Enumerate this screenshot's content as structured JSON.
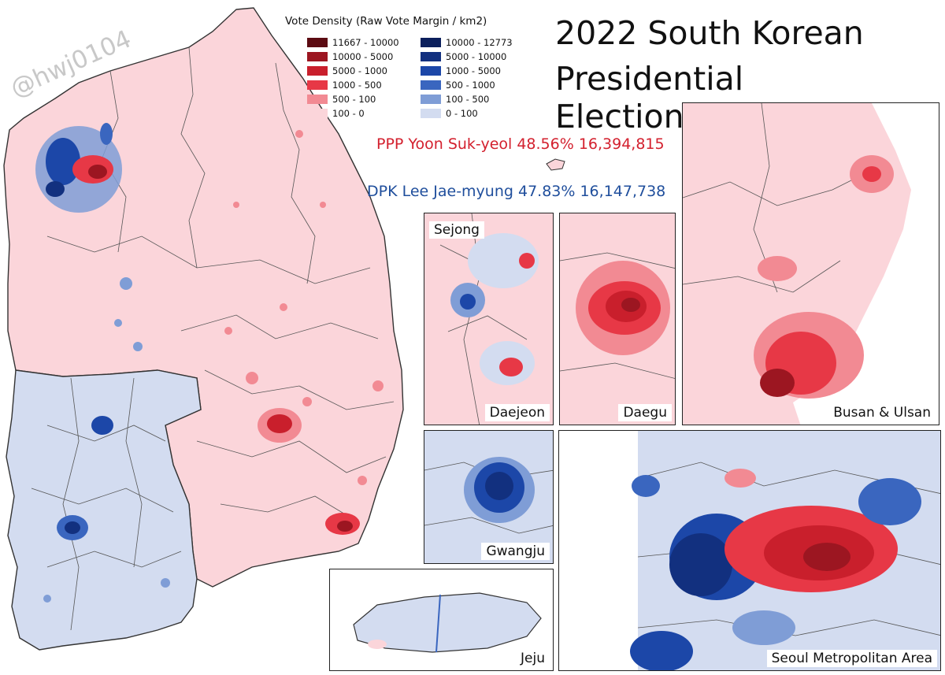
{
  "watermark": "@hwj0104",
  "title": {
    "line1": "2022 South Korean",
    "line2": "Presidential Election"
  },
  "legend": {
    "title": "Vote Density (Raw Vote Margin / km2)",
    "red_items": [
      {
        "label": "11667 - 10000",
        "color": "#5c0b12"
      },
      {
        "label": "10000 - 5000",
        "color": "#9c1621"
      },
      {
        "label": "5000 - 1000",
        "color": "#c91f2c"
      },
      {
        "label": "1000 - 500",
        "color": "#e73846"
      },
      {
        "label": "500 - 100",
        "color": "#f28a93"
      },
      {
        "label": "100 - 0",
        "color": "#fbd5da"
      }
    ],
    "blue_items": [
      {
        "label": "10000 - 12773",
        "color": "#0b1f5c"
      },
      {
        "label": "5000 - 10000",
        "color": "#12307f"
      },
      {
        "label": "1000 - 5000",
        "color": "#1c47a8"
      },
      {
        "label": "500 - 1000",
        "color": "#3a66bf"
      },
      {
        "label": "100 - 500",
        "color": "#7f9dd6"
      },
      {
        "label": "0 - 100",
        "color": "#d3dcf0"
      }
    ]
  },
  "candidates": {
    "ppp": {
      "text": "PPP Yoon Suk-yeol 48.56% 16,394,815",
      "color": "#d3202e"
    },
    "dpk": {
      "text": "DPK Lee Jae-myung 47.83% 16,147,738",
      "color": "#1f4e9c"
    }
  },
  "insets": {
    "sejong": "Sejong",
    "daejeon": "Daejeon",
    "daegu": "Daegu",
    "busan": "Busan & Ulsan",
    "gwangju": "Gwangju",
    "jeju": "Jeju",
    "seoul": "Seoul Metropolitan Area"
  }
}
